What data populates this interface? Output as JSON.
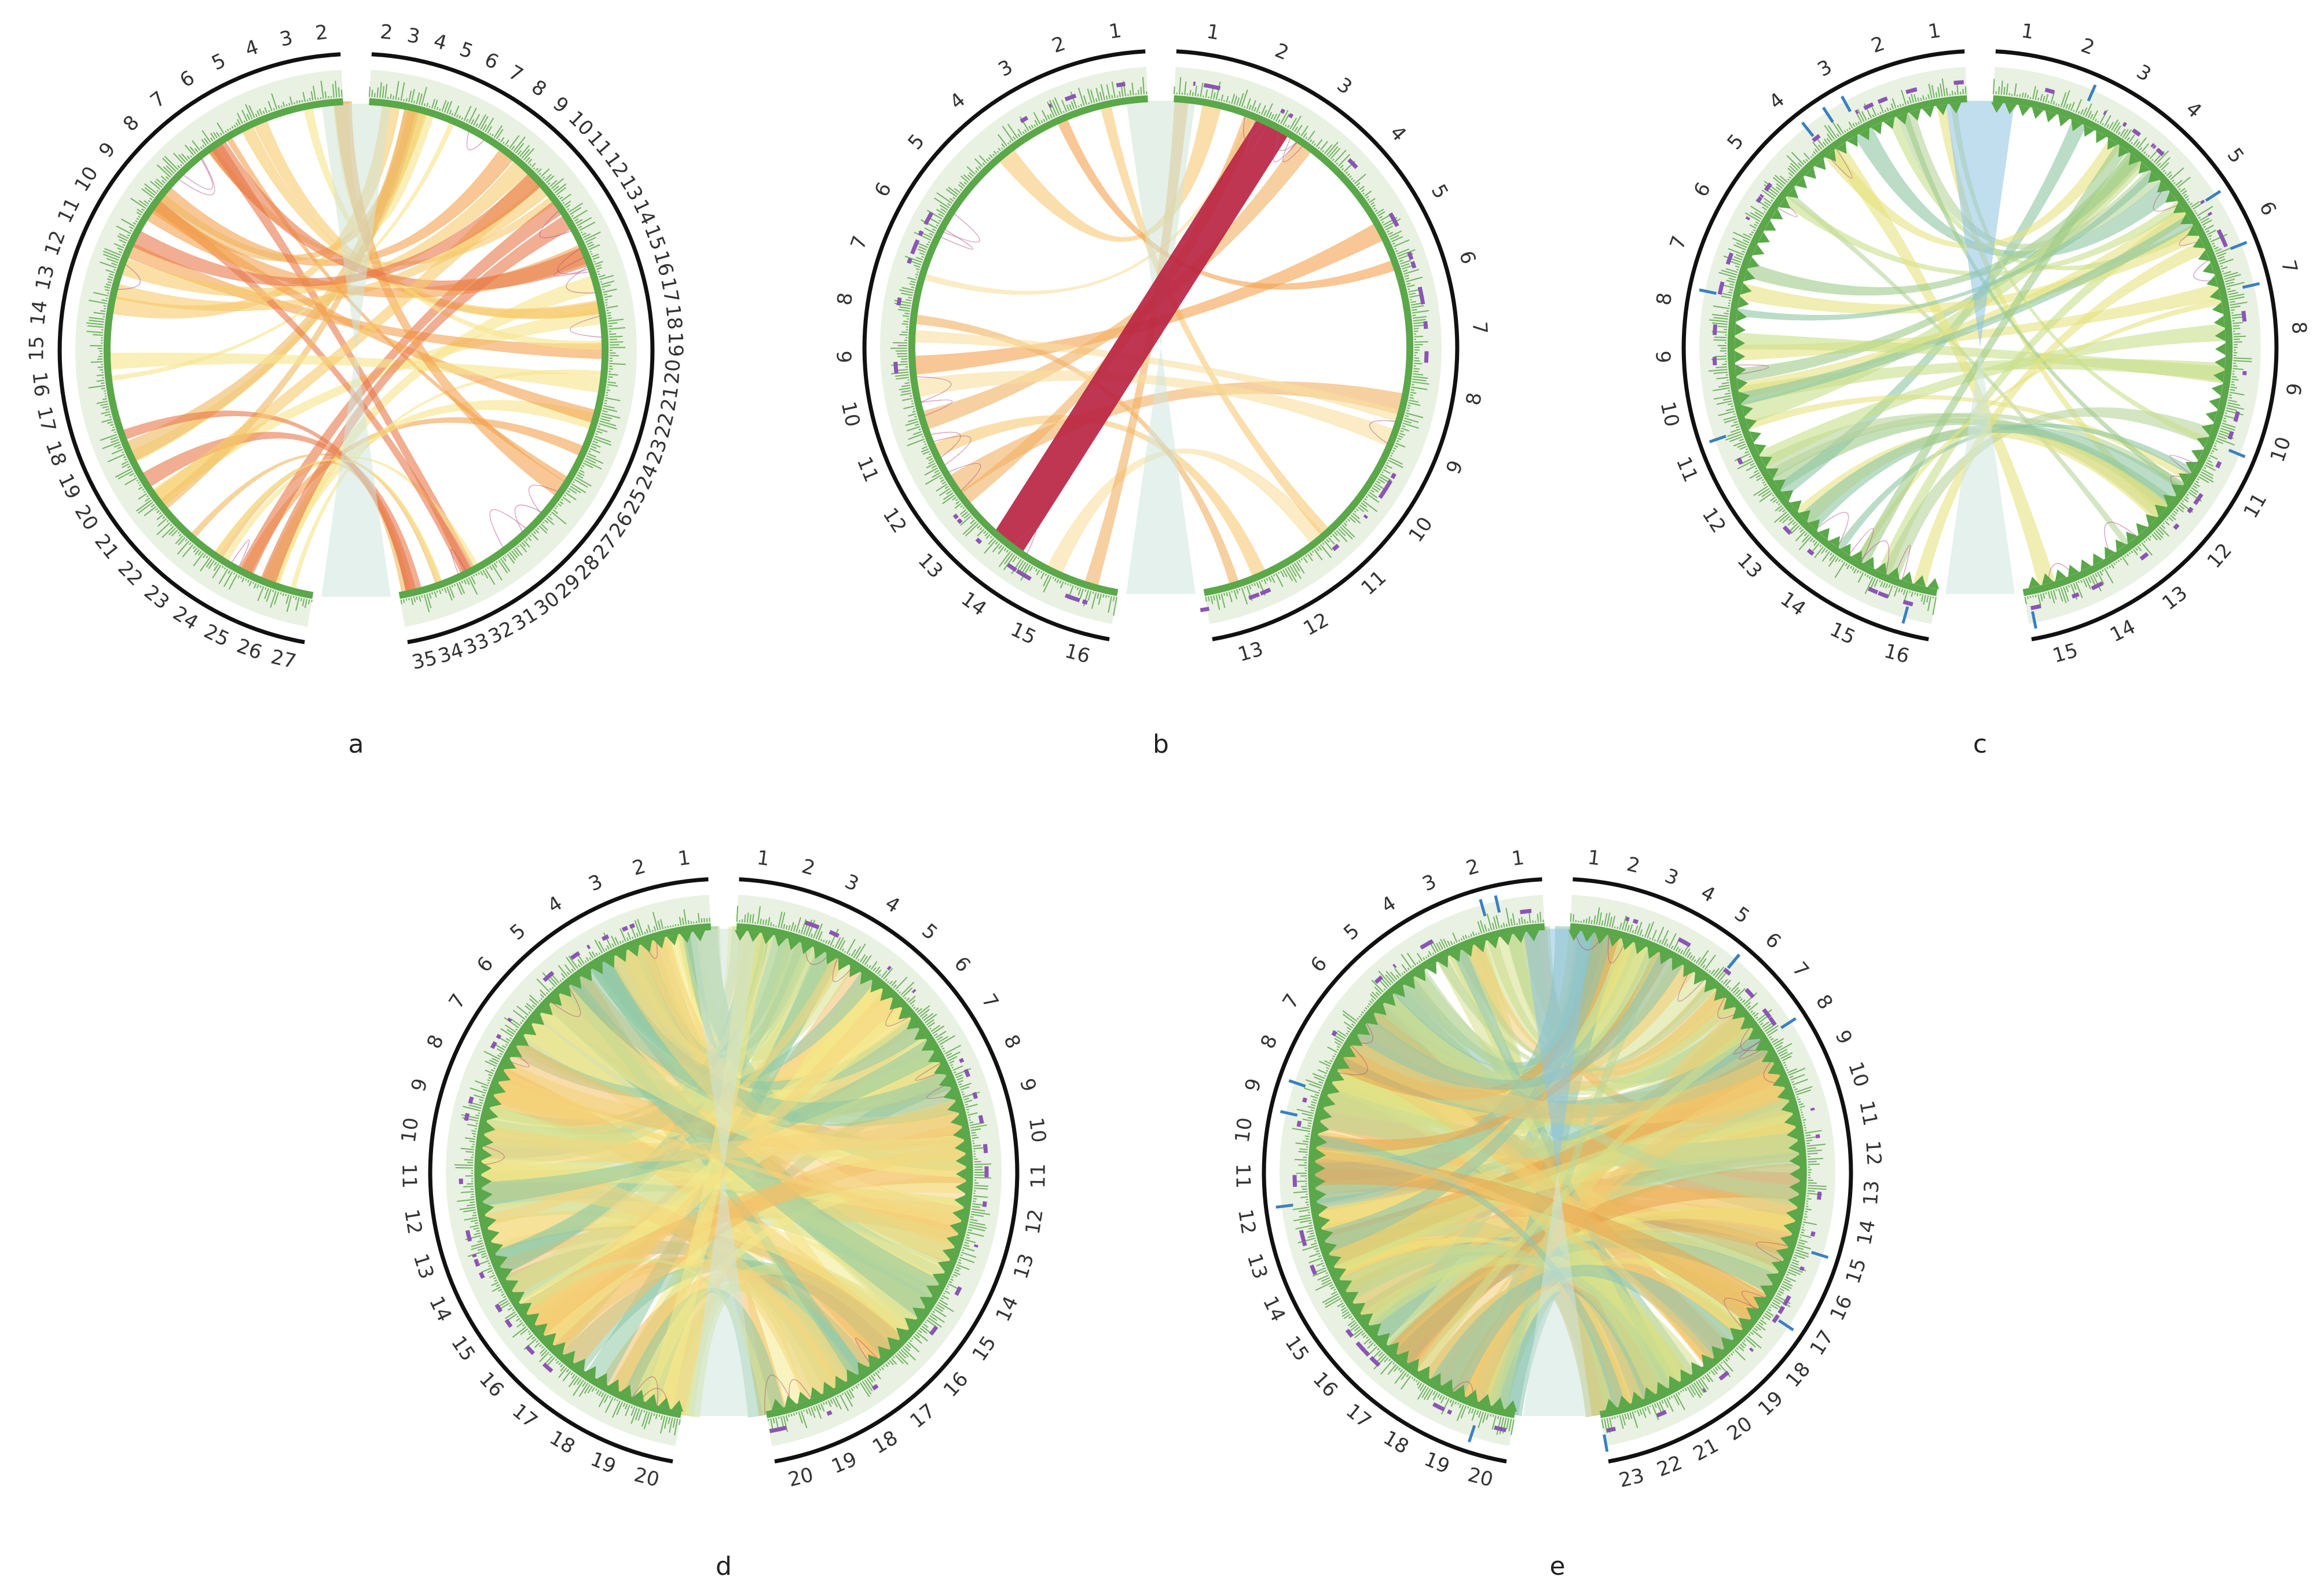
{
  "figure": {
    "panels": [
      {
        "label": "a",
        "left_ticks": [
          "2",
          "3",
          "4",
          "5",
          "6",
          "7",
          "8",
          "9",
          "10",
          "11",
          "12",
          "13",
          "14",
          "15",
          "16",
          "17",
          "18",
          "19",
          "20",
          "21",
          "22",
          "23",
          "24",
          "25",
          "26",
          "27"
        ],
        "right_ticks": [
          "2",
          "3",
          "4",
          "5",
          "6",
          "7",
          "8",
          "9",
          "10",
          "11",
          "12",
          "13",
          "14",
          "15",
          "16",
          "17",
          "18",
          "19",
          "20",
          "21",
          "22",
          "23",
          "24",
          "25",
          "26",
          "27",
          "28",
          "29",
          "30",
          "31",
          "32",
          "33",
          "34",
          "35"
        ],
        "palette": [
          "#f6c96a",
          "#f3a24f",
          "#e8784a",
          "#f7e48a",
          "#f0b860"
        ],
        "density": "sparse",
        "links": 38,
        "purple_track": false,
        "teeth": false
      },
      {
        "label": "b",
        "left_ticks": [
          "1",
          "2",
          "3",
          "4",
          "5",
          "6",
          "7",
          "8",
          "9",
          "10",
          "11",
          "12",
          "13",
          "14",
          "15",
          "16"
        ],
        "right_ticks": [
          "1",
          "2",
          "3",
          "4",
          "5",
          "6",
          "7",
          "8",
          "9",
          "10",
          "11",
          "12",
          "13"
        ],
        "palette": [
          "#f4a24e",
          "#f7c977",
          "#f9dfa0",
          "#f2b063"
        ],
        "density": "sparse",
        "links": 14,
        "purple_track": true,
        "teeth": false,
        "highlight_color": "#b8203f"
      },
      {
        "label": "c",
        "left_ticks": [
          "1",
          "2",
          "3",
          "4",
          "5",
          "6",
          "7",
          "8",
          "9",
          "10",
          "11",
          "12",
          "13",
          "14",
          "15",
          "16"
        ],
        "right_ticks": [
          "1",
          "2",
          "3",
          "4",
          "5",
          "6",
          "7",
          "8",
          "9",
          "10",
          "11",
          "12",
          "13",
          "14",
          "15"
        ],
        "palette": [
          "#9fcc8a",
          "#c8df8a",
          "#8dc6a3",
          "#e6e27e",
          "#b7d49b"
        ],
        "density": "medium",
        "links": 34,
        "purple_track": true,
        "teeth": true,
        "blue_block": "#8ec2e0"
      },
      {
        "label": "d",
        "left_ticks": [
          "1",
          "2",
          "3",
          "4",
          "5",
          "6",
          "7",
          "8",
          "9",
          "10",
          "11",
          "12",
          "13",
          "14",
          "15",
          "16",
          "17",
          "18",
          "19",
          "20"
        ],
        "right_ticks": [
          "1",
          "2",
          "3",
          "4",
          "5",
          "6",
          "7",
          "8",
          "9",
          "10",
          "11",
          "12",
          "13",
          "14",
          "15",
          "16",
          "17",
          "18",
          "19",
          "20"
        ],
        "palette": [
          "#f4ea8a",
          "#d8e28f",
          "#f6d57e",
          "#c6dc98",
          "#f2c068",
          "#8fc9a4"
        ],
        "density": "dense",
        "links": 90,
        "purple_track": true,
        "teeth": true
      },
      {
        "label": "e",
        "left_ticks": [
          "1",
          "2",
          "3",
          "4",
          "5",
          "6",
          "7",
          "8",
          "9",
          "10",
          "11",
          "12",
          "13",
          "14",
          "15",
          "16",
          "17",
          "18",
          "19",
          "20"
        ],
        "right_ticks": [
          "1",
          "2",
          "3",
          "4",
          "5",
          "6",
          "7",
          "8",
          "9",
          "10",
          "11",
          "12",
          "13",
          "14",
          "15",
          "16",
          "17",
          "18",
          "19",
          "20",
          "21",
          "22",
          "23"
        ],
        "palette": [
          "#efe47c",
          "#d6e08a",
          "#b9d79a",
          "#f3cc72",
          "#8dc5b0",
          "#e9a44e"
        ],
        "density": "dense",
        "links": 110,
        "purple_track": true,
        "teeth": true,
        "blue_block": "#8ec2e0"
      }
    ],
    "colors": {
      "chromosome_bar": "#111111",
      "green_track": "#5aa849",
      "green_light": "#e9f1e3",
      "purple_mark": "#8a55b3",
      "blue_mark": "#3a7fc1",
      "arc_magenta": "#b3487f"
    }
  }
}
